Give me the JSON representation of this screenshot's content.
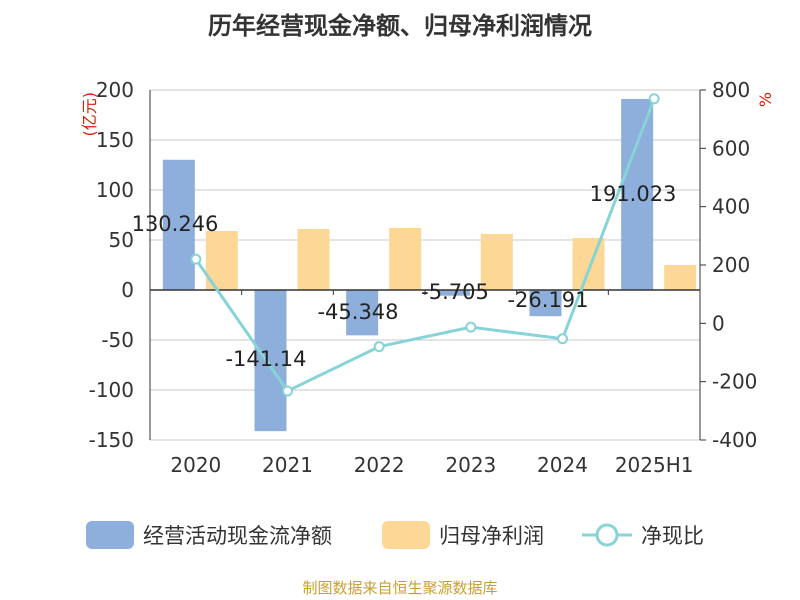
{
  "title": "历年经营现金净额、归母净利润情况",
  "source": "制图数据来自恒生聚源数据库",
  "colors": {
    "cash": "#8eaedb",
    "profit": "#fdd796",
    "ratio": "#86d3d8",
    "unit": "#d81e06",
    "source": "#c8a032"
  },
  "chart_data": {
    "type": "bar",
    "categories": [
      "2020",
      "2021",
      "2022",
      "2023",
      "2024",
      "2025H1"
    ],
    "left_axis": {
      "unit_label": "(亿元)",
      "min": -150,
      "max": 200,
      "ticks": [
        200,
        150,
        100,
        50,
        0,
        -50,
        -100,
        -150
      ]
    },
    "right_axis": {
      "unit_label": "%",
      "min": -400,
      "max": 800,
      "ticks": [
        800,
        600,
        400,
        200,
        0,
        -200,
        -400
      ]
    },
    "series": [
      {
        "name": "经营活动现金流净额",
        "type": "bar",
        "axis": "left",
        "values": [
          130.246,
          -141.14,
          -45.348,
          -5.705,
          -26.191,
          191.023
        ],
        "labels": [
          "130.246",
          "-141.14",
          "-45.348",
          "-5.705",
          "-26.191",
          "191.023"
        ]
      },
      {
        "name": "归母净利润",
        "type": "bar",
        "axis": "left",
        "values": [
          59,
          61,
          62,
          56,
          52,
          25
        ]
      },
      {
        "name": "净现比",
        "type": "line",
        "axis": "right",
        "values": [
          220,
          -232,
          -80,
          -13,
          -53,
          770
        ]
      }
    ],
    "legend_position": "bottom",
    "grid": true
  }
}
